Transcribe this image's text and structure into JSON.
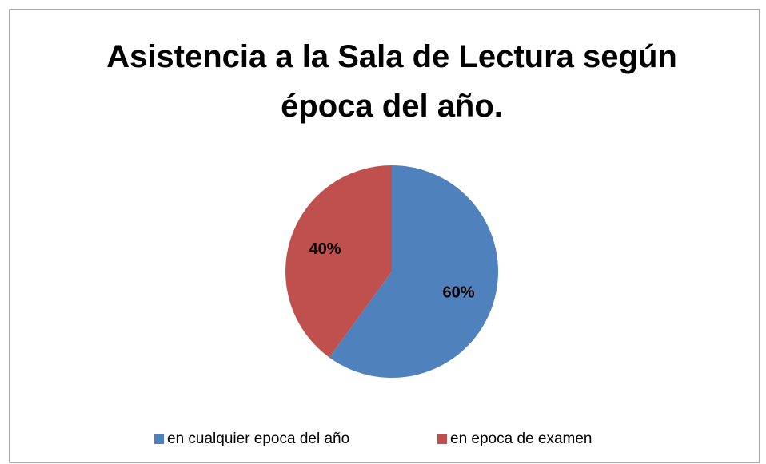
{
  "chart_data": {
    "type": "pie",
    "title": "Asistencia a la Sala de Lectura según época del año.",
    "categories": [
      "en cualquier epoca del año",
      "en epoca de examen"
    ],
    "values": [
      60,
      40
    ],
    "value_labels": [
      "60%",
      "40%"
    ],
    "colors": [
      "#4f81bd",
      "#c0504d"
    ],
    "legend": "bottom"
  }
}
